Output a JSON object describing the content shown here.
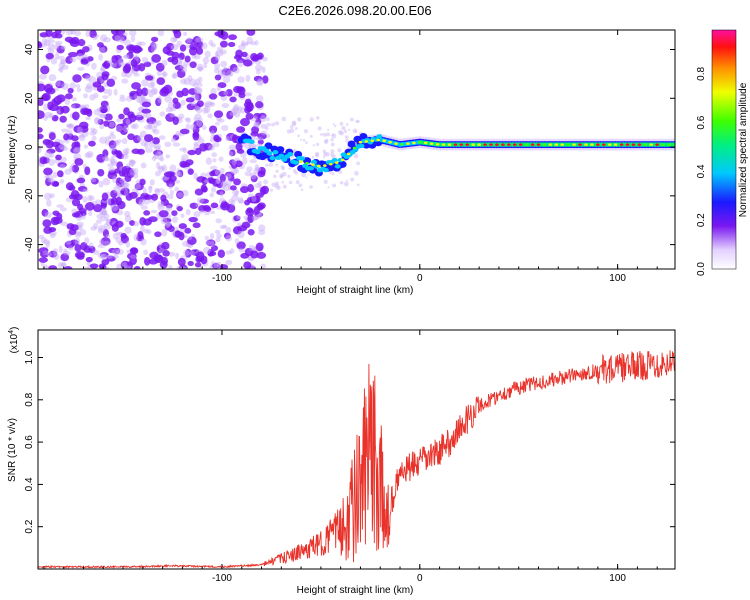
{
  "title": "C2E6.2026.098.20.00.E06",
  "colors": {
    "snr_line": "#e8322a",
    "axis": "#000000",
    "dots": "#7a3cf0"
  },
  "chart_data": [
    {
      "type": "heatmap",
      "xlabel": "Height of straight line (km)",
      "ylabel": "Frequency (Hz)",
      "xlim": [
        -193,
        129
      ],
      "ylim": [
        -50,
        48
      ],
      "xticks": [
        -100,
        0,
        100
      ],
      "yticks": [
        -40,
        -20,
        0,
        20,
        40
      ],
      "colorbar": {
        "label": "Normalized spectral amplitude",
        "range": [
          0,
          0.98
        ],
        "ticks": [
          0.0,
          0.2,
          0.4,
          0.6,
          0.8
        ]
      },
      "ridge": [
        {
          "h": -90,
          "f": 2
        },
        {
          "h": -80,
          "f": -1
        },
        {
          "h": -70,
          "f": -4
        },
        {
          "h": -60,
          "f": -6
        },
        {
          "h": -50,
          "f": -8
        },
        {
          "h": -40,
          "f": -6
        },
        {
          "h": -30,
          "f": 2
        },
        {
          "h": -20,
          "f": 3
        },
        {
          "h": -10,
          "f": 1
        },
        {
          "h": 0,
          "f": 2
        },
        {
          "h": 10,
          "f": 1
        },
        {
          "h": 50,
          "f": 1
        },
        {
          "h": 100,
          "f": 1
        },
        {
          "h": 129,
          "f": 1
        }
      ]
    },
    {
      "type": "line",
      "xlabel": "Height of straight line (km)",
      "ylabel": "SNR (10 * v/v)",
      "exponent_label": "(x10",
      "exponent_power": "4",
      "exponent_close": ")",
      "xlim": [
        -193,
        129
      ],
      "ylim": [
        0,
        1.13
      ],
      "xticks": [
        -100,
        0,
        100
      ],
      "yticks": [
        0.2,
        0.4,
        0.6,
        0.8,
        1.0
      ],
      "ytick_labels": [
        "0.2",
        "0.4",
        "0.6",
        "0.8",
        "1.0"
      ],
      "series": [
        {
          "name": "SNR",
          "points": [
            [
              -193,
              0.01
            ],
            [
              -150,
              0.01
            ],
            [
              -125,
              0.015
            ],
            [
              -100,
              0.01
            ],
            [
              -80,
              0.02
            ],
            [
              -70,
              0.05
            ],
            [
              -60,
              0.08
            ],
            [
              -50,
              0.12
            ],
            [
              -40,
              0.2
            ],
            [
              -33,
              0.3
            ],
            [
              -28,
              0.45
            ],
            [
              -25,
              0.55
            ],
            [
              -20,
              0.4
            ],
            [
              -18,
              0.25
            ],
            [
              -15,
              0.3
            ],
            [
              -10,
              0.45
            ],
            [
              -5,
              0.48
            ],
            [
              0,
              0.5
            ],
            [
              5,
              0.53
            ],
            [
              10,
              0.56
            ],
            [
              15,
              0.6
            ],
            [
              20,
              0.66
            ],
            [
              25,
              0.72
            ],
            [
              30,
              0.77
            ],
            [
              40,
              0.82
            ],
            [
              50,
              0.86
            ],
            [
              60,
              0.88
            ],
            [
              70,
              0.9
            ],
            [
              80,
              0.92
            ],
            [
              90,
              0.94
            ],
            [
              100,
              0.95
            ],
            [
              110,
              0.96
            ],
            [
              120,
              0.97
            ],
            [
              129,
              0.98
            ]
          ]
        }
      ]
    }
  ]
}
